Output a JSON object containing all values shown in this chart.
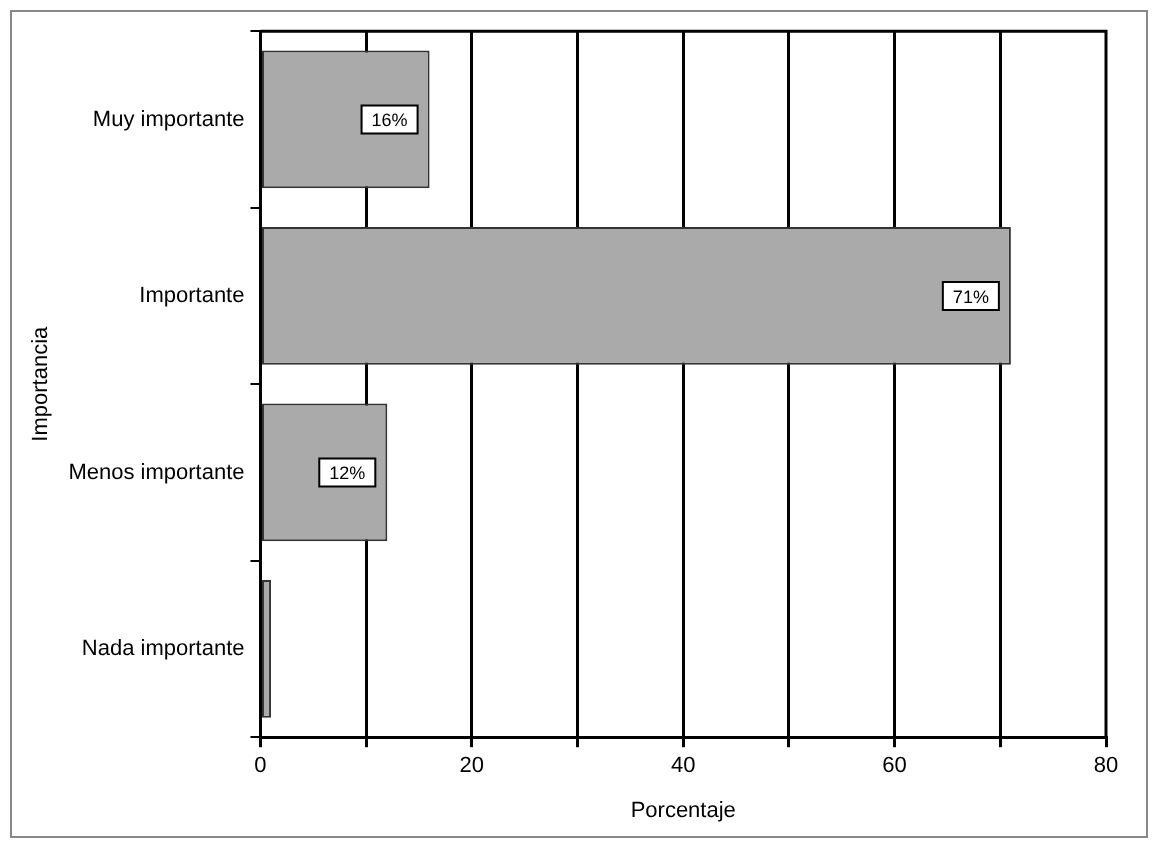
{
  "chart_data": {
    "type": "bar",
    "orientation": "horizontal",
    "categories": [
      "Muy importante",
      "Importante",
      "Menos importante",
      "Nada importante"
    ],
    "values": [
      16,
      71,
      12,
      1
    ],
    "value_labels": [
      "16%",
      "71%",
      "12%",
      null
    ],
    "color": "#aaaaaa",
    "xlabel": "Porcentaje",
    "ylabel": "Importancia",
    "xlim": [
      0,
      80
    ],
    "xticks": [
      0,
      {
        "value": 10,
        "label": null
      },
      20,
      {
        "value": 30,
        "label": null
      },
      40,
      {
        "value": 50,
        "label": null
      },
      60,
      {
        "value": 70,
        "label": null
      },
      80
    ],
    "grid": "x",
    "legend": false
  }
}
